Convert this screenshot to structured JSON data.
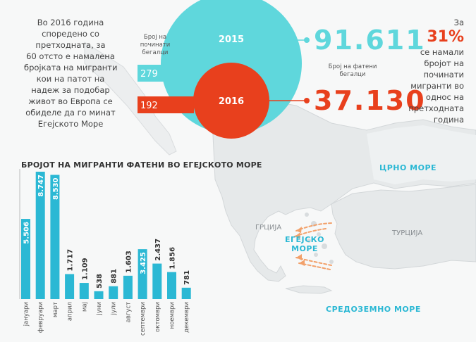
{
  "intro_lines": [
    "Во 2016 година",
    "споредено со",
    "претходната, за",
    "60 отсто е намалена",
    "бројката на мигранти",
    "кои на патот на",
    "надеж за подобар",
    "живот во Европа се",
    "обиделе да го минат",
    "Егејското Море"
  ],
  "circles": {
    "year_2015": "2015",
    "year_2016": "2016",
    "deaths_label_lines": [
      "Број на",
      "починати",
      "бегалци"
    ],
    "caught_label_lines": [
      "Број на фатени",
      "бегалци"
    ],
    "deaths_2015": "279",
    "deaths_2016": "192",
    "caught_2015": "91.611",
    "caught_2016": "37.130"
  },
  "right_note": {
    "prefix": "За",
    "percent": "31%",
    "lines": [
      "се намали",
      "бројот на",
      "починати",
      "мигранти во",
      "однос на",
      "претходната",
      "година"
    ]
  },
  "colors": {
    "teal": "#5fd7dc",
    "orange": "#e8401d",
    "bar_blue": "#2bb8d4",
    "map_land": "#e6e9ea"
  },
  "map_labels": {
    "black_sea": "ЦРНО МОРЕ",
    "greece": "ГРЦИЈА",
    "aegean_line1": "ЕГЕЈСКО",
    "aegean_line2": "МОРЕ",
    "turkey": "ТУРЦИЈА",
    "mediterranean": "СРЕДОЗЕМНО МОРЕ"
  },
  "chart_data": {
    "type": "bar",
    "title": "БРОЈОТ НА МИГРАНТИ ФАТЕНИ ВО ЕГЕЈСКОТО МОРЕ",
    "categories": [
      "јануари",
      "февруари",
      "март",
      "април",
      "мај",
      "јуни",
      "јули",
      "август",
      "септември",
      "октомври",
      "ноември",
      "декември"
    ],
    "values": [
      5506,
      8747,
      8530,
      1717,
      1109,
      538,
      881,
      1603,
      3425,
      2437,
      1856,
      781
    ],
    "value_labels": [
      "5.506",
      "8.747",
      "8.530",
      "1.717",
      "1.109",
      "538",
      "881",
      "1.603",
      "3.425",
      "2.437",
      "1.856",
      "781"
    ],
    "bar_color": "#2bb8d4",
    "ylim": [
      0,
      8747
    ],
    "grid": false,
    "legend": "none"
  }
}
